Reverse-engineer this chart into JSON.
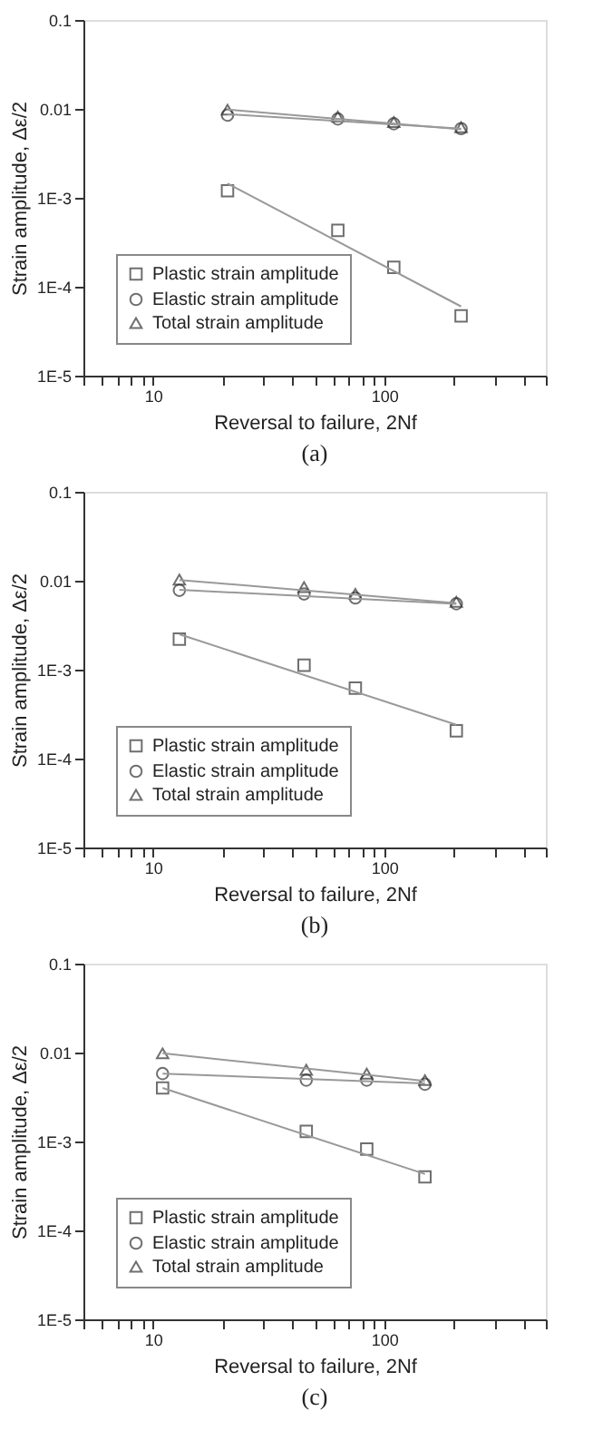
{
  "chart_data": [
    {
      "type": "scatter",
      "xlabel": "Reversal to failure, 2Nf",
      "ylabel": "Strain amplitude, Δε/2",
      "annotations": [
        "(a)"
      ],
      "log": "xy",
      "grid": false,
      "legend": "bottom left",
      "xlim": [
        5,
        500
      ],
      "xticks": [
        {
          "value": 5,
          "label": null
        },
        {
          "value": 6,
          "label": null
        },
        {
          "value": 7,
          "label": null
        },
        {
          "value": 8,
          "label": null
        },
        {
          "value": 9,
          "label": null
        },
        10,
        {
          "value": 20,
          "label": null
        },
        {
          "value": 30,
          "label": null
        },
        {
          "value": 40,
          "label": null
        },
        {
          "value": 50,
          "label": null
        },
        {
          "value": 60,
          "label": null
        },
        {
          "value": 70,
          "label": null
        },
        {
          "value": 80,
          "label": null
        },
        {
          "value": 90,
          "label": null
        },
        100,
        {
          "value": 200,
          "label": null
        },
        {
          "value": 300,
          "label": null
        },
        {
          "value": 400,
          "label": null
        },
        {
          "value": 500,
          "label": null
        }
      ],
      "ylim": [
        1e-05,
        0.1
      ],
      "yticks": [
        {
          "value": 1e-05,
          "label": "1E-5"
        },
        {
          "value": 0.0001,
          "label": "1E-4"
        },
        {
          "value": 0.001,
          "label": "1E-3"
        },
        {
          "value": 0.01,
          "label": "0.01"
        },
        {
          "value": 0.1,
          "label": "0.1"
        }
      ],
      "x": [
        21,
        63,
        110,
        215
      ],
      "series": [
        {
          "name": "Plastic strain amplitude",
          "color": "#333333",
          "marker": "square",
          "values": [
            0.0012,
            0.00043,
            0.000165,
            4.7e-05
          ]
        },
        {
          "name": "Elastic strain amplitude",
          "color": "#333333",
          "marker": "circle",
          "values": [
            0.0085,
            0.0077,
            0.0068,
            0.006
          ]
        },
        {
          "name": "Total strain amplitude",
          "color": "#333333",
          "marker": "triangle",
          "values": [
            0.0098,
            0.0082,
            0.0071,
            0.0062
          ]
        },
        {
          "type": "line",
          "color": "#999999",
          "x": [
            21,
            215
          ],
          "values": [
            0.00145,
            6e-05
          ]
        },
        {
          "type": "line",
          "color": "#999999",
          "x": [
            21,
            215
          ],
          "values": [
            0.0087,
            0.006
          ]
        },
        {
          "type": "line",
          "color": "#999999",
          "x": [
            21,
            215
          ],
          "values": [
            0.0098,
            0.0059
          ]
        }
      ]
    },
    {
      "type": "scatter",
      "xlabel": "Reversal to failure, 2Nf",
      "ylabel": "Strain amplitude, Δε/2",
      "annotations": [
        "(b)"
      ],
      "log": "xy",
      "grid": false,
      "legend": "bottom left",
      "xlim": [
        5,
        500
      ],
      "xticks": [
        {
          "value": 5,
          "label": null
        },
        {
          "value": 6,
          "label": null
        },
        {
          "value": 7,
          "label": null
        },
        {
          "value": 8,
          "label": null
        },
        {
          "value": 9,
          "label": null
        },
        10,
        {
          "value": 20,
          "label": null
        },
        {
          "value": 30,
          "label": null
        },
        {
          "value": 40,
          "label": null
        },
        {
          "value": 50,
          "label": null
        },
        {
          "value": 60,
          "label": null
        },
        {
          "value": 70,
          "label": null
        },
        {
          "value": 80,
          "label": null
        },
        {
          "value": 90,
          "label": null
        },
        100,
        {
          "value": 200,
          "label": null
        },
        {
          "value": 300,
          "label": null
        },
        {
          "value": 400,
          "label": null
        },
        {
          "value": 500,
          "label": null
        }
      ],
      "ylim": [
        1e-05,
        0.1
      ],
      "yticks": [
        {
          "value": 1e-05,
          "label": "1E-5"
        },
        {
          "value": 0.0001,
          "label": "1E-4"
        },
        {
          "value": 0.001,
          "label": "1E-3"
        },
        {
          "value": 0.01,
          "label": "0.01"
        },
        {
          "value": 0.1,
          "label": "0.1"
        }
      ],
      "x": [
        13,
        45,
        75,
        205
      ],
      "series": [
        {
          "name": "Plastic strain amplitude",
          "color": "#333333",
          "marker": "square",
          "values": [
            0.0022,
            0.00112,
            0.00062,
            0.000205
          ]
        },
        {
          "name": "Elastic strain amplitude",
          "color": "#333333",
          "marker": "circle",
          "values": [
            0.0078,
            0.0071,
            0.0064,
            0.0055
          ]
        },
        {
          "name": "Total strain amplitude",
          "color": "#333333",
          "marker": "triangle",
          "values": [
            0.0103,
            0.0085,
            0.0071,
            0.0058
          ]
        },
        {
          "type": "line",
          "color": "#999999",
          "x": [
            13,
            205
          ],
          "values": [
            0.0025,
            0.00024
          ]
        },
        {
          "type": "line",
          "color": "#999999",
          "x": [
            13,
            205
          ],
          "values": [
            0.0079,
            0.0055
          ]
        },
        {
          "type": "line",
          "color": "#999999",
          "x": [
            13,
            205
          ],
          "values": [
            0.0102,
            0.0056
          ]
        }
      ]
    },
    {
      "type": "scatter",
      "xlabel": "Reversal to failure, 2Nf",
      "ylabel": "Strain amplitude, Δε/2",
      "annotations": [
        "(c)"
      ],
      "log": "xy",
      "grid": false,
      "legend": "bottom left",
      "xlim": [
        5,
        500
      ],
      "xticks": [
        {
          "value": 5,
          "label": null
        },
        {
          "value": 6,
          "label": null
        },
        {
          "value": 7,
          "label": null
        },
        {
          "value": 8,
          "label": null
        },
        {
          "value": 9,
          "label": null
        },
        10,
        {
          "value": 20,
          "label": null
        },
        {
          "value": 30,
          "label": null
        },
        {
          "value": 40,
          "label": null
        },
        {
          "value": 50,
          "label": null
        },
        {
          "value": 60,
          "label": null
        },
        {
          "value": 70,
          "label": null
        },
        {
          "value": 80,
          "label": null
        },
        {
          "value": 90,
          "label": null
        },
        100,
        {
          "value": 200,
          "label": null
        },
        {
          "value": 300,
          "label": null
        },
        {
          "value": 400,
          "label": null
        },
        {
          "value": 500,
          "label": null
        }
      ],
      "ylim": [
        1e-05,
        0.1
      ],
      "yticks": [
        {
          "value": 1e-05,
          "label": "1E-5"
        },
        {
          "value": 0.0001,
          "label": "1E-4"
        },
        {
          "value": 0.001,
          "label": "1E-3"
        },
        {
          "value": 0.01,
          "label": "0.01"
        },
        {
          "value": 0.1,
          "label": "0.1"
        }
      ],
      "x": [
        11,
        46,
        84,
        150
      ],
      "series": [
        {
          "name": "Plastic strain amplitude",
          "color": "#333333",
          "marker": "square",
          "values": [
            0.004,
            0.0013,
            0.00082,
            0.0004
          ]
        },
        {
          "name": "Elastic strain amplitude",
          "color": "#333333",
          "marker": "circle",
          "values": [
            0.0058,
            0.0049,
            0.0049,
            0.0044
          ]
        },
        {
          "name": "Total strain amplitude",
          "color": "#333333",
          "marker": "triangle",
          "values": [
            0.0098,
            0.0064,
            0.0058,
            0.0049
          ]
        },
        {
          "type": "line",
          "color": "#999999",
          "x": [
            11,
            150
          ],
          "values": [
            0.004,
            0.00043
          ]
        },
        {
          "type": "line",
          "color": "#999999",
          "x": [
            11,
            150
          ],
          "values": [
            0.0058,
            0.0045
          ]
        },
        {
          "type": "line",
          "color": "#999999",
          "x": [
            11,
            150
          ],
          "values": [
            0.0098,
            0.0048
          ]
        }
      ]
    }
  ]
}
